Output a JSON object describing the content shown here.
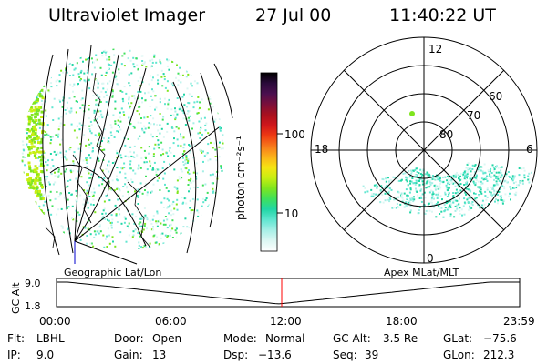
{
  "header": {
    "instrument": "Ultraviolet Imager",
    "date": "27 Jul 00",
    "time": "11:40:22 UT"
  },
  "colorbar": {
    "label": "photon cm⁻²s⁻¹",
    "ticks": [
      "100",
      "10"
    ],
    "colors": [
      "#000000",
      "#2a0a3a",
      "#4b0f4f",
      "#7a0f3a",
      "#a8101e",
      "#d0161b",
      "#ef3b12",
      "#f7791b",
      "#fbb11a",
      "#f6e312",
      "#c8ee12",
      "#7fe51e",
      "#3fe05a",
      "#21d6a5",
      "#5fe6d0",
      "#a6efe6",
      "#dcf7f3",
      "#ffffff"
    ]
  },
  "polar": {
    "hour_labels": {
      "top": "12",
      "left": "18",
      "right": "6",
      "bottom": "0"
    },
    "lat_labels": [
      "60",
      "70",
      "80"
    ]
  },
  "timeline": {
    "y_axis_label": "GC Alt",
    "y_ticks": [
      "9.0",
      "1.8"
    ],
    "left_caption": "Geographic Lat/Lon",
    "right_caption": "Apex MLat/MLT",
    "x_ticks": [
      "00:00",
      "06:00",
      "12:00",
      "18:00",
      "23:59"
    ],
    "marker_hour": 11.67
  },
  "footer": {
    "col1": [
      {
        "label": "Flt:",
        "value": "LBHL"
      },
      {
        "label": "IP:",
        "value": "9.0"
      }
    ],
    "col2": [
      {
        "label": "Door:",
        "value": "Open"
      },
      {
        "label": "Gain:",
        "value": "13"
      }
    ],
    "col3": [
      {
        "label": "Mode:",
        "value": "Normal"
      },
      {
        "label": "Dsp:",
        "value": "−13.6"
      }
    ],
    "col4": [
      {
        "label": "GC Alt:",
        "value": "3.5 Re"
      },
      {
        "label": "Seq:",
        "value": "39"
      }
    ],
    "col5": [
      {
        "label": "GLat:",
        "value": "−75.6"
      },
      {
        "label": "GLon:",
        "value": "212.3"
      }
    ]
  }
}
